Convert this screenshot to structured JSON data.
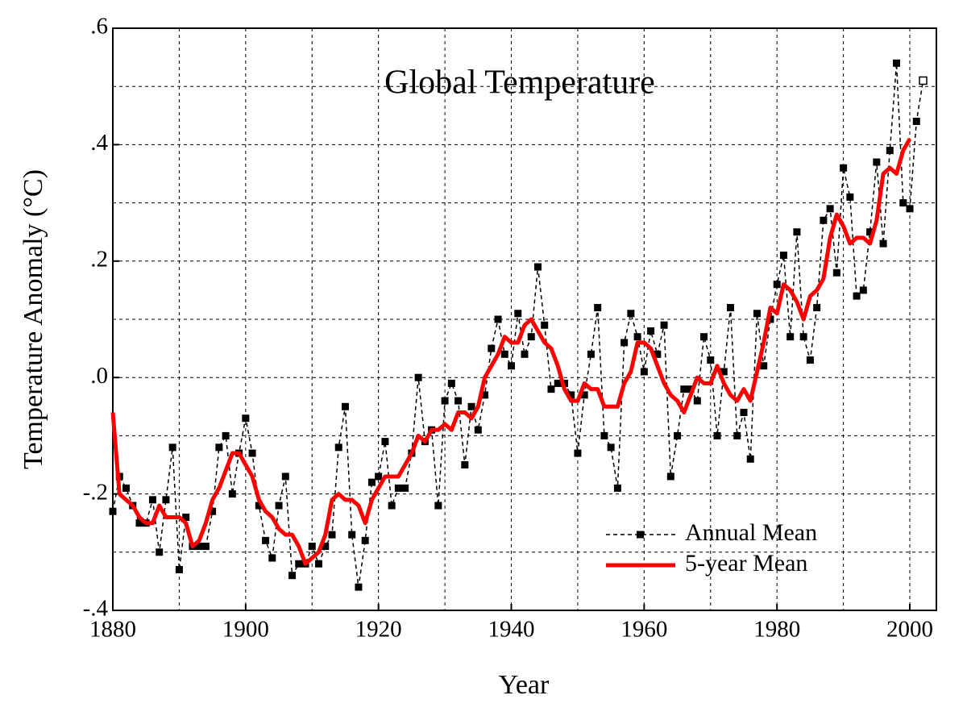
{
  "chart_data": {
    "type": "line",
    "title": "Global Temperature",
    "x_label": "Year",
    "y_label": "Temperature Anomaly (°C)",
    "x": [
      1880,
      1881,
      1882,
      1883,
      1884,
      1885,
      1886,
      1887,
      1888,
      1889,
      1890,
      1891,
      1892,
      1893,
      1894,
      1895,
      1896,
      1897,
      1898,
      1899,
      1900,
      1901,
      1902,
      1903,
      1904,
      1905,
      1906,
      1907,
      1908,
      1909,
      1910,
      1911,
      1912,
      1913,
      1914,
      1915,
      1916,
      1917,
      1918,
      1919,
      1920,
      1921,
      1922,
      1923,
      1924,
      1925,
      1926,
      1927,
      1928,
      1929,
      1930,
      1931,
      1932,
      1933,
      1934,
      1935,
      1936,
      1937,
      1938,
      1939,
      1940,
      1941,
      1942,
      1943,
      1944,
      1945,
      1946,
      1947,
      1948,
      1949,
      1950,
      1951,
      1952,
      1953,
      1954,
      1955,
      1956,
      1957,
      1958,
      1959,
      1960,
      1961,
      1962,
      1963,
      1964,
      1965,
      1966,
      1967,
      1968,
      1969,
      1970,
      1971,
      1972,
      1973,
      1974,
      1975,
      1976,
      1977,
      1978,
      1979,
      1980,
      1981,
      1982,
      1983,
      1984,
      1985,
      1986,
      1987,
      1988,
      1989,
      1990,
      1991,
      1992,
      1993,
      1994,
      1995,
      1996,
      1997,
      1998,
      1999,
      2000,
      2001,
      2002
    ],
    "series": [
      {
        "name": "Annual Mean",
        "color": "#000000",
        "dashed": true,
        "marker": "square",
        "hollow_last": true,
        "values": [
          -0.23,
          -0.17,
          -0.19,
          -0.22,
          -0.25,
          -0.25,
          -0.21,
          -0.3,
          -0.21,
          -0.12,
          -0.33,
          -0.24,
          -0.29,
          -0.29,
          -0.29,
          -0.23,
          -0.12,
          -0.1,
          -0.2,
          -0.13,
          -0.07,
          -0.13,
          -0.22,
          -0.28,
          -0.31,
          -0.22,
          -0.17,
          -0.34,
          -0.32,
          -0.32,
          -0.29,
          -0.32,
          -0.29,
          -0.27,
          -0.12,
          -0.05,
          -0.27,
          -0.36,
          -0.28,
          -0.18,
          -0.17,
          -0.11,
          -0.22,
          -0.19,
          -0.19,
          -0.13,
          0.0,
          -0.11,
          -0.09,
          -0.22,
          -0.04,
          -0.01,
          -0.04,
          -0.15,
          -0.05,
          -0.09,
          -0.03,
          0.05,
          0.1,
          0.04,
          0.02,
          0.11,
          0.04,
          0.07,
          0.19,
          0.09,
          -0.02,
          -0.01,
          -0.01,
          -0.03,
          -0.13,
          -0.03,
          0.04,
          0.12,
          -0.1,
          -0.12,
          -0.19,
          0.06,
          0.11,
          0.07,
          0.01,
          0.08,
          0.04,
          0.09,
          -0.17,
          -0.1,
          -0.02,
          -0.02,
          -0.04,
          0.07,
          0.03,
          -0.1,
          0.01,
          0.12,
          -0.1,
          -0.06,
          -0.14,
          0.11,
          0.02,
          0.1,
          0.16,
          0.21,
          0.07,
          0.25,
          0.07,
          0.03,
          0.12,
          0.27,
          0.29,
          0.18,
          0.36,
          0.31,
          0.14,
          0.15,
          0.25,
          0.37,
          0.23,
          0.39,
          0.54,
          0.3,
          0.29,
          0.44,
          0.51
        ]
      },
      {
        "name": "5-year Mean",
        "color": "#ff0000",
        "values": [
          -0.06,
          -0.2,
          -0.21,
          -0.22,
          -0.24,
          -0.25,
          -0.25,
          -0.22,
          -0.24,
          -0.24,
          -0.24,
          -0.25,
          -0.29,
          -0.28,
          -0.25,
          -0.21,
          -0.19,
          -0.16,
          -0.13,
          -0.13,
          -0.15,
          -0.17,
          -0.21,
          -0.23,
          -0.24,
          -0.26,
          -0.27,
          -0.27,
          -0.29,
          -0.32,
          -0.31,
          -0.3,
          -0.27,
          -0.21,
          -0.2,
          -0.21,
          -0.21,
          -0.22,
          -0.25,
          -0.21,
          -0.19,
          -0.17,
          -0.17,
          -0.17,
          -0.15,
          -0.13,
          -0.1,
          -0.11,
          -0.09,
          -0.09,
          -0.08,
          -0.09,
          -0.06,
          -0.06,
          -0.07,
          -0.05,
          0.0,
          0.02,
          0.04,
          0.07,
          0.06,
          0.06,
          0.09,
          0.1,
          0.08,
          0.06,
          0.05,
          0.02,
          -0.02,
          -0.04,
          -0.04,
          -0.01,
          -0.02,
          -0.02,
          -0.05,
          -0.05,
          -0.05,
          -0.01,
          0.01,
          0.06,
          0.06,
          0.05,
          0.02,
          -0.01,
          -0.03,
          -0.04,
          -0.06,
          -0.03,
          0.0,
          -0.01,
          -0.01,
          0.02,
          -0.01,
          -0.03,
          -0.04,
          -0.02,
          -0.04,
          0.01,
          0.06,
          0.12,
          0.11,
          0.16,
          0.15,
          0.13,
          0.1,
          0.14,
          0.15,
          0.17,
          0.24,
          0.28,
          0.26,
          0.23,
          0.24,
          0.24,
          0.23,
          0.27,
          0.35,
          0.36,
          0.35,
          0.39,
          0.41,
          null,
          null
        ]
      }
    ],
    "xlim": [
      1880,
      2004
    ],
    "xticks": [
      1880,
      1900,
      1920,
      1940,
      1960,
      1980,
      2000
    ],
    "ylim": [
      -0.4,
      0.6
    ],
    "yticks": [
      {
        "value": -0.4,
        "label": "-.4"
      },
      {
        "value": -0.2,
        "label": "-.2"
      },
      {
        "value": 0.0,
        "label": ".0"
      },
      {
        "value": 0.2,
        "label": ".2"
      },
      {
        "value": 0.4,
        "label": ".4"
      },
      {
        "value": 0.6,
        "label": ".6"
      }
    ],
    "grid": true,
    "legend": "lower right"
  }
}
